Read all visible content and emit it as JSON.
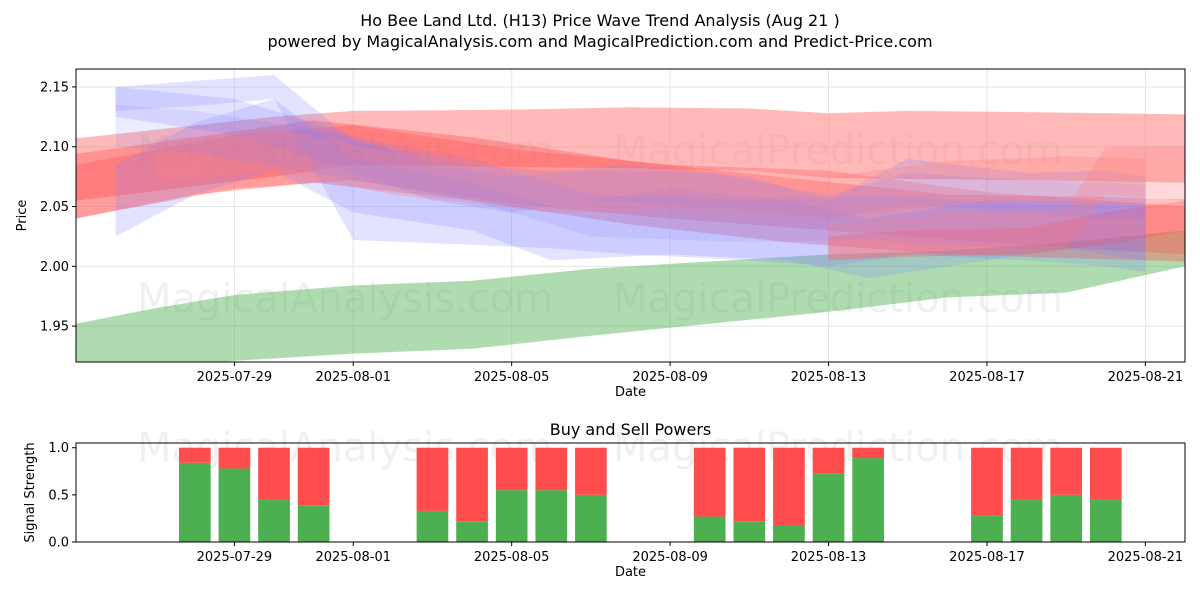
{
  "title": "Ho Bee Land Ltd. (H13) Price Wave Trend Analysis (Aug 21 )",
  "subtitle": "powered by MagicalAnalysis.com and MagicalPrediction.com and Predict-Price.com",
  "watermarks": [
    "MagicalAnalysis.com",
    "MagicalPrediction.com"
  ],
  "colors": {
    "green": "#4caf50",
    "red": "#ff4d4d",
    "blue": "#8080ff",
    "pink": "#ff8080"
  },
  "chart_data": [
    {
      "type": "area",
      "title": "",
      "xlabel": "Date",
      "ylabel": "Price",
      "xlim": [
        "2025-07-25",
        "2025-08-22"
      ],
      "ylim": [
        1.92,
        2.165
      ],
      "grid": true,
      "x_ticks": [
        "2025-07-29",
        "2025-08-01",
        "2025-08-05",
        "2025-08-09",
        "2025-08-13",
        "2025-08-17",
        "2025-08-21"
      ],
      "y_ticks": [
        1.95,
        2.0,
        2.05,
        2.1,
        2.15
      ],
      "bands": [
        {
          "color": "green",
          "opacity": 0.45,
          "x": [
            "2025-07-25",
            "2025-07-27",
            "2025-07-29",
            "2025-08-01",
            "2025-08-04",
            "2025-08-07",
            "2025-08-10",
            "2025-08-13",
            "2025-08-16",
            "2025-08-19",
            "2025-08-22"
          ],
          "upper": [
            1.952,
            1.965,
            1.976,
            1.984,
            1.988,
            1.998,
            2.004,
            2.01,
            2.013,
            2.02,
            2.03
          ],
          "lower": [
            1.91,
            1.915,
            1.921,
            1.927,
            1.931,
            1.942,
            1.952,
            1.962,
            1.974,
            1.978,
            2.0
          ]
        },
        {
          "color": "pink",
          "opacity": 0.55,
          "x": [
            "2025-07-25",
            "2025-07-30",
            "2025-08-01",
            "2025-08-05",
            "2025-08-08",
            "2025-08-11",
            "2025-08-13",
            "2025-08-15",
            "2025-08-18",
            "2025-08-22"
          ],
          "upper": [
            2.107,
            2.125,
            2.13,
            2.131,
            2.133,
            2.132,
            2.128,
            2.13,
            2.129,
            2.127
          ],
          "lower": [
            2.055,
            2.075,
            2.085,
            2.083,
            2.082,
            2.08,
            2.074,
            2.073,
            2.072,
            2.07
          ]
        },
        {
          "color": "red",
          "opacity": 0.35,
          "x": [
            "2025-07-25",
            "2025-07-28",
            "2025-07-31",
            "2025-08-04",
            "2025-08-08",
            "2025-08-12",
            "2025-08-16",
            "2025-08-20",
            "2025-08-22"
          ],
          "upper": [
            2.094,
            2.108,
            2.122,
            2.108,
            2.088,
            2.074,
            2.06,
            2.058,
            2.056
          ],
          "lower": [
            2.04,
            2.06,
            2.07,
            2.055,
            2.035,
            2.02,
            2.01,
            2.006,
            2.004
          ]
        },
        {
          "color": "red",
          "opacity": 0.3,
          "x": [
            "2025-07-25",
            "2025-07-29",
            "2025-08-01",
            "2025-08-05",
            "2025-08-09",
            "2025-08-13",
            "2025-08-17",
            "2025-08-22"
          ],
          "upper": [
            2.085,
            2.11,
            2.118,
            2.098,
            2.085,
            2.08,
            2.062,
            2.05
          ],
          "lower": [
            2.04,
            2.065,
            2.072,
            2.052,
            2.04,
            2.03,
            2.02,
            2.01
          ]
        },
        {
          "color": "blue",
          "opacity": 0.22,
          "x": [
            "2025-07-26",
            "2025-07-28",
            "2025-07-30",
            "2025-08-01",
            "2025-08-04",
            "2025-08-06",
            "2025-08-08",
            "2025-08-11",
            "2025-08-13",
            "2025-08-15",
            "2025-08-18",
            "2025-08-20",
            "2025-08-21"
          ],
          "upper": [
            2.15,
            2.155,
            2.16,
            2.105,
            2.085,
            2.08,
            2.085,
            2.075,
            2.055,
            2.09,
            2.078,
            2.08,
            2.075
          ],
          "lower": [
            2.13,
            2.134,
            2.14,
            2.022,
            2.018,
            2.015,
            2.01,
            2.005,
            2.0,
            2.01,
            2.005,
            2.0,
            1.995
          ]
        },
        {
          "color": "blue",
          "opacity": 0.22,
          "x": [
            "2025-07-26",
            "2025-07-28",
            "2025-07-30",
            "2025-08-01",
            "2025-08-04",
            "2025-08-06",
            "2025-08-09",
            "2025-08-12",
            "2025-08-14",
            "2025-08-17",
            "2025-08-19",
            "2025-08-21"
          ],
          "upper": [
            2.085,
            2.12,
            2.14,
            2.09,
            2.07,
            2.05,
            2.065,
            2.055,
            2.04,
            2.055,
            2.055,
            2.052
          ],
          "lower": [
            2.025,
            2.06,
            2.08,
            2.045,
            2.03,
            2.005,
            2.01,
            2.005,
            1.99,
            2.005,
            2.015,
            2.005
          ]
        },
        {
          "color": "blue",
          "opacity": 0.22,
          "x": [
            "2025-07-26",
            "2025-07-29",
            "2025-07-31",
            "2025-08-03",
            "2025-08-05",
            "2025-08-07",
            "2025-08-10",
            "2025-08-13",
            "2025-08-15",
            "2025-08-18",
            "2025-08-20",
            "2025-08-21"
          ],
          "upper": [
            2.15,
            2.14,
            2.12,
            2.085,
            2.075,
            2.08,
            2.078,
            2.06,
            2.078,
            2.072,
            2.07,
            2.068
          ],
          "lower": [
            2.125,
            2.11,
            2.09,
            2.055,
            2.045,
            2.055,
            2.05,
            2.04,
            2.052,
            2.045,
            2.04,
            2.04
          ]
        },
        {
          "color": "pink",
          "opacity": 0.3,
          "x": [
            "2025-07-27",
            "2025-07-30",
            "2025-08-02",
            "2025-08-06",
            "2025-08-10",
            "2025-08-13",
            "2025-08-16",
            "2025-08-19",
            "2025-08-21"
          ],
          "upper": [
            2.105,
            2.115,
            2.095,
            2.08,
            2.082,
            2.075,
            2.088,
            2.092,
            2.09
          ],
          "lower": [
            2.07,
            2.08,
            2.06,
            2.045,
            2.048,
            2.04,
            2.052,
            2.055,
            2.05
          ]
        },
        {
          "color": "pink",
          "opacity": 0.3,
          "x": [
            "2025-08-13",
            "2025-08-16",
            "2025-08-19",
            "2025-08-20",
            "2025-08-22"
          ],
          "upper": [
            2.035,
            2.045,
            2.048,
            2.1,
            2.1
          ],
          "lower": [
            2.005,
            2.012,
            2.015,
            2.06,
            2.055
          ]
        },
        {
          "color": "red",
          "opacity": 0.25,
          "x": [
            "2025-08-13",
            "2025-08-15",
            "2025-08-18",
            "2025-08-20",
            "2025-08-22"
          ],
          "upper": [
            2.025,
            2.03,
            2.032,
            2.045,
            2.055
          ],
          "lower": [
            2.005,
            2.008,
            2.01,
            2.018,
            2.03
          ]
        },
        {
          "color": "blue",
          "opacity": 0.15,
          "x": [
            "2025-07-26",
            "2025-07-28",
            "2025-07-31",
            "2025-08-04",
            "2025-08-07",
            "2025-08-11",
            "2025-08-14",
            "2025-08-18",
            "2025-08-21"
          ],
          "upper": [
            2.135,
            2.13,
            2.115,
            2.09,
            2.06,
            2.055,
            2.06,
            2.052,
            2.05
          ],
          "lower": [
            2.1,
            2.095,
            2.078,
            2.055,
            2.025,
            2.02,
            2.022,
            2.015,
            2.012
          ]
        }
      ]
    },
    {
      "type": "bar",
      "title": "Buy and Sell Powers",
      "xlabel": "Date",
      "ylabel": "Signal Strength",
      "xlim": [
        "2025-07-25",
        "2025-08-22"
      ],
      "ylim": [
        0,
        1.05
      ],
      "y_ticks": [
        0.0,
        0.5,
        1.0
      ],
      "x_ticks": [
        "2025-07-29",
        "2025-08-01",
        "2025-08-05",
        "2025-08-09",
        "2025-08-13",
        "2025-08-17",
        "2025-08-21"
      ],
      "categories": [
        "2025-07-28",
        "2025-07-29",
        "2025-07-30",
        "2025-07-31",
        "2025-08-03",
        "2025-08-04",
        "2025-08-05",
        "2025-08-06",
        "2025-08-07",
        "2025-08-10",
        "2025-08-11",
        "2025-08-12",
        "2025-08-13",
        "2025-08-14",
        "2025-08-17",
        "2025-08-18",
        "2025-08-19",
        "2025-08-20"
      ],
      "series": [
        {
          "color": "green",
          "values": [
            0.84,
            0.78,
            0.45,
            0.39,
            0.33,
            0.22,
            0.55,
            0.55,
            0.5,
            0.27,
            0.22,
            0.17,
            0.73,
            0.89,
            0.28,
            0.45,
            0.5,
            0.45
          ]
        },
        {
          "color": "red",
          "values": [
            0.16,
            0.22,
            0.55,
            0.61,
            0.67,
            0.78,
            0.45,
            0.45,
            0.5,
            0.73,
            0.78,
            0.83,
            0.27,
            0.11,
            0.72,
            0.55,
            0.5,
            0.55
          ]
        }
      ]
    }
  ]
}
